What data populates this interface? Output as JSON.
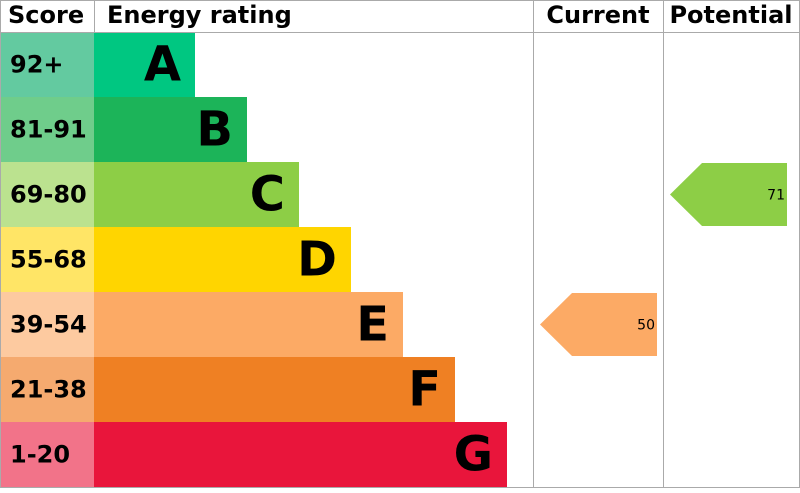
{
  "headers": [
    "Score",
    "Energy rating",
    "Current",
    "Potential"
  ],
  "bands": [
    {
      "score": "92+",
      "letter": "A",
      "color": "#00c781",
      "score_color": "#63caa0"
    },
    {
      "score": "81-91",
      "letter": "B",
      "color": "#1cb459",
      "score_color": "#6fcd8b"
    },
    {
      "score": "69-80",
      "letter": "C",
      "color": "#8dce46",
      "score_color": "#bbe28f"
    },
    {
      "score": "55-68",
      "letter": "D",
      "color": "#ffd500",
      "score_color": "#ffe566"
    },
    {
      "score": "39-54",
      "letter": "E",
      "color": "#fcaa65",
      "score_color": "#fdcaa0"
    },
    {
      "score": "21-38",
      "letter": "F",
      "color": "#ef8023",
      "score_color": "#f5aa6f"
    },
    {
      "score": "1-20",
      "letter": "G",
      "color": "#e9153b",
      "score_color": "#f27389"
    }
  ],
  "current": 50,
  "potential": 71
}
